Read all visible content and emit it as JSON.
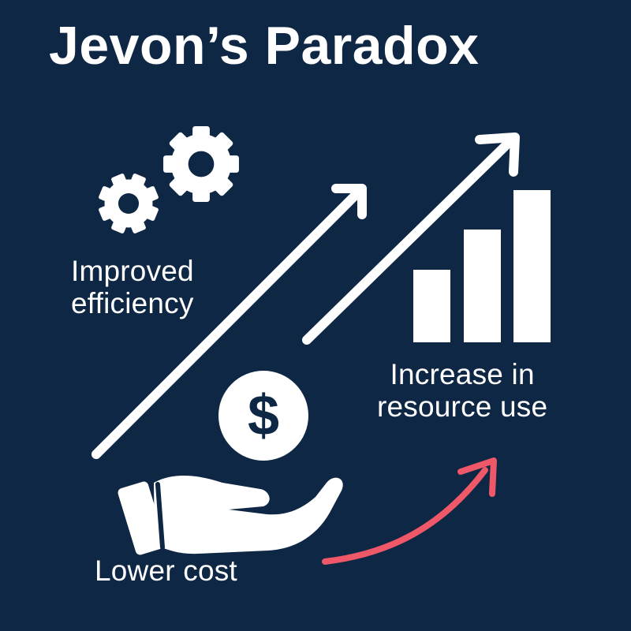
{
  "title": "Jevon’s Paradox",
  "labels": {
    "efficiency_line1": "Improved",
    "efficiency_line2": "efficiency",
    "resource_line1": "Increase in",
    "resource_line2": "resource use",
    "cost": "Lower cost"
  },
  "dollar_symbol": "$",
  "icons": {
    "gear": "gears-icon",
    "bars": "bar-chart-icon",
    "money": "dollar-coin-icon",
    "hand": "open-hand-icon",
    "arrow_up": "trend-arrow-icon",
    "arrow_curved": "curved-arrow-icon"
  },
  "colors": {
    "background": "#0e2744",
    "foreground": "#ffffff",
    "accent": "#ef5868"
  },
  "bar_heights_relative": [
    0.48,
    0.7,
    0.98
  ]
}
